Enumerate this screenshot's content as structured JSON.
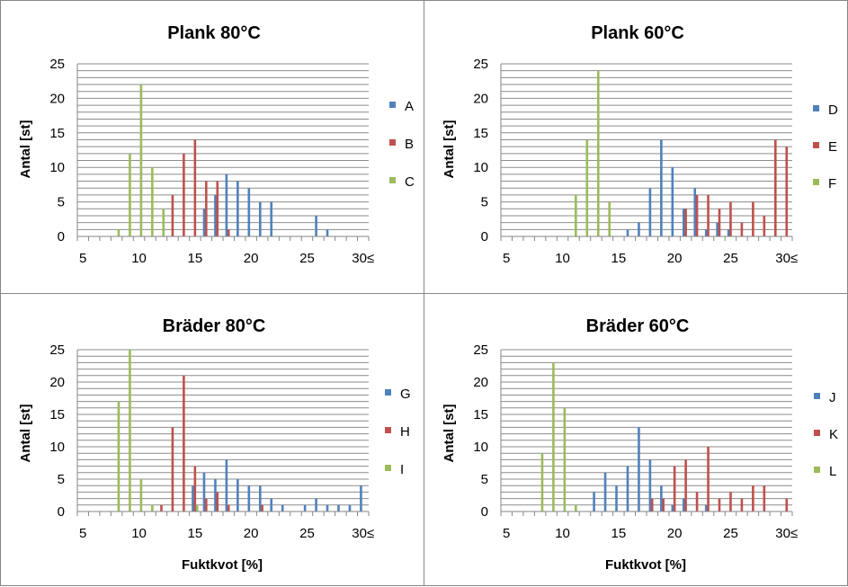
{
  "colors": {
    "blue": "#4F81BD",
    "red": "#C0504D",
    "green": "#9BBB59",
    "grid": "#8c8c8c",
    "axis": "#868686",
    "border": "#868686"
  },
  "chart_data": [
    {
      "type": "bar",
      "title": "Plank 80°C",
      "ylabel": "Antal [st]",
      "xlabel": "",
      "ylim": [
        0,
        25
      ],
      "yticks": [
        "0",
        "5",
        "10",
        "15",
        "20",
        "25"
      ],
      "xticks": [
        "5",
        "10",
        "15",
        "20",
        "25",
        "30≤"
      ],
      "x": [
        5,
        6,
        7,
        8,
        9,
        10,
        11,
        12,
        13,
        14,
        15,
        16,
        17,
        18,
        19,
        20,
        21,
        22,
        23,
        24,
        25,
        26,
        27,
        28,
        29,
        30
      ],
      "grid": true,
      "legend": "right",
      "series": [
        {
          "name": "A",
          "color": "#4F81BD",
          "values": [
            0,
            0,
            0,
            0,
            0,
            0,
            0,
            0,
            0,
            0,
            0,
            4,
            6,
            9,
            8,
            7,
            5,
            5,
            0,
            0,
            0,
            3,
            1,
            0,
            0,
            0
          ]
        },
        {
          "name": "B",
          "color": "#C0504D",
          "values": [
            0,
            0,
            0,
            0,
            0,
            0,
            0,
            0,
            6,
            12,
            14,
            8,
            8,
            1,
            0,
            0,
            0,
            0,
            0,
            0,
            0,
            0,
            0,
            0,
            0,
            0
          ]
        },
        {
          "name": "C",
          "color": "#9BBB59",
          "values": [
            0,
            0,
            0,
            1,
            12,
            22,
            10,
            4,
            0,
            0,
            0,
            0,
            0,
            0,
            0,
            0,
            0,
            0,
            0,
            0,
            0,
            0,
            0,
            0,
            0,
            0
          ]
        }
      ]
    },
    {
      "type": "bar",
      "title": "Plank 60°C",
      "ylabel": "Antal [st]",
      "xlabel": "",
      "ylim": [
        0,
        25
      ],
      "yticks": [
        "0",
        "5",
        "10",
        "15",
        "20",
        "25"
      ],
      "xticks": [
        "5",
        "10",
        "15",
        "20",
        "25",
        "30≤"
      ],
      "x": [
        5,
        6,
        7,
        8,
        9,
        10,
        11,
        12,
        13,
        14,
        15,
        16,
        17,
        18,
        19,
        20,
        21,
        22,
        23,
        24,
        25,
        26,
        27,
        28,
        29,
        30
      ],
      "grid": true,
      "legend": "right",
      "series": [
        {
          "name": "D",
          "color": "#4F81BD",
          "values": [
            0,
            0,
            0,
            0,
            0,
            0,
            0,
            0,
            0,
            0,
            0,
            1,
            2,
            7,
            14,
            10,
            4,
            7,
            1,
            2,
            1,
            0,
            0,
            0,
            0,
            0
          ]
        },
        {
          "name": "E",
          "color": "#C0504D",
          "values": [
            0,
            0,
            0,
            0,
            0,
            0,
            0,
            0,
            0,
            0,
            0,
            0,
            0,
            0,
            0,
            0,
            4,
            6,
            6,
            4,
            5,
            2,
            5,
            3,
            14,
            13
          ]
        },
        {
          "name": "F",
          "color": "#9BBB59",
          "values": [
            0,
            0,
            0,
            0,
            0,
            0,
            6,
            14,
            24,
            5,
            0,
            0,
            0,
            0,
            0,
            0,
            0,
            0,
            0,
            0,
            0,
            0,
            0,
            0,
            0,
            0
          ]
        }
      ]
    },
    {
      "type": "bar",
      "title": "Bräder 80°C",
      "ylabel": "Antal [st]",
      "xlabel": "Fuktkvot [%]",
      "ylim": [
        0,
        25
      ],
      "yticks": [
        "0",
        "5",
        "10",
        "15",
        "20",
        "25"
      ],
      "xticks": [
        "5",
        "10",
        "15",
        "20",
        "25",
        "30≤"
      ],
      "x": [
        5,
        6,
        7,
        8,
        9,
        10,
        11,
        12,
        13,
        14,
        15,
        16,
        17,
        18,
        19,
        20,
        21,
        22,
        23,
        24,
        25,
        26,
        27,
        28,
        29,
        30
      ],
      "grid": true,
      "legend": "right",
      "series": [
        {
          "name": "G",
          "color": "#4F81BD",
          "values": [
            0,
            0,
            0,
            0,
            0,
            0,
            0,
            0,
            0,
            0,
            4,
            6,
            5,
            8,
            5,
            4,
            4,
            2,
            1,
            0,
            1,
            2,
            1,
            1,
            1,
            4
          ]
        },
        {
          "name": "H",
          "color": "#C0504D",
          "values": [
            0,
            0,
            0,
            0,
            0,
            0,
            0,
            1,
            13,
            21,
            7,
            2,
            3,
            1,
            0,
            0,
            1,
            0,
            0,
            0,
            0,
            0,
            0,
            0,
            0,
            0
          ]
        },
        {
          "name": "I",
          "color": "#9BBB59",
          "values": [
            0,
            0,
            0,
            17,
            25,
            5,
            1,
            0,
            0,
            0,
            1,
            0,
            0,
            0,
            0,
            0,
            0,
            0,
            0,
            0,
            0,
            0,
            0,
            0,
            0,
            0
          ]
        }
      ]
    },
    {
      "type": "bar",
      "title": "Bräder 60°C",
      "ylabel": "Antal [st]",
      "xlabel": "Fuktkvot [%]",
      "ylim": [
        0,
        25
      ],
      "yticks": [
        "0",
        "5",
        "10",
        "15",
        "20",
        "25"
      ],
      "xticks": [
        "5",
        "10",
        "15",
        "20",
        "25",
        "30≤"
      ],
      "x": [
        5,
        6,
        7,
        8,
        9,
        10,
        11,
        12,
        13,
        14,
        15,
        16,
        17,
        18,
        19,
        20,
        21,
        22,
        23,
        24,
        25,
        26,
        27,
        28,
        29,
        30
      ],
      "grid": true,
      "legend": "right",
      "series": [
        {
          "name": "J",
          "color": "#4F81BD",
          "values": [
            0,
            0,
            0,
            0,
            0,
            0,
            0,
            0,
            3,
            6,
            4,
            7,
            13,
            8,
            4,
            1,
            2,
            0,
            1,
            0,
            0,
            0,
            0,
            0,
            0,
            0
          ]
        },
        {
          "name": "K",
          "color": "#C0504D",
          "values": [
            0,
            0,
            0,
            0,
            0,
            0,
            0,
            0,
            0,
            0,
            0,
            0,
            0,
            2,
            2,
            7,
            8,
            3,
            10,
            2,
            3,
            2,
            4,
            4,
            0,
            2
          ]
        },
        {
          "name": "L",
          "color": "#9BBB59",
          "values": [
            0,
            0,
            0,
            9,
            23,
            16,
            1,
            0,
            0,
            0,
            0,
            0,
            0,
            0,
            0,
            0,
            0,
            0,
            0,
            0,
            0,
            0,
            0,
            0,
            0,
            0
          ]
        }
      ]
    }
  ]
}
